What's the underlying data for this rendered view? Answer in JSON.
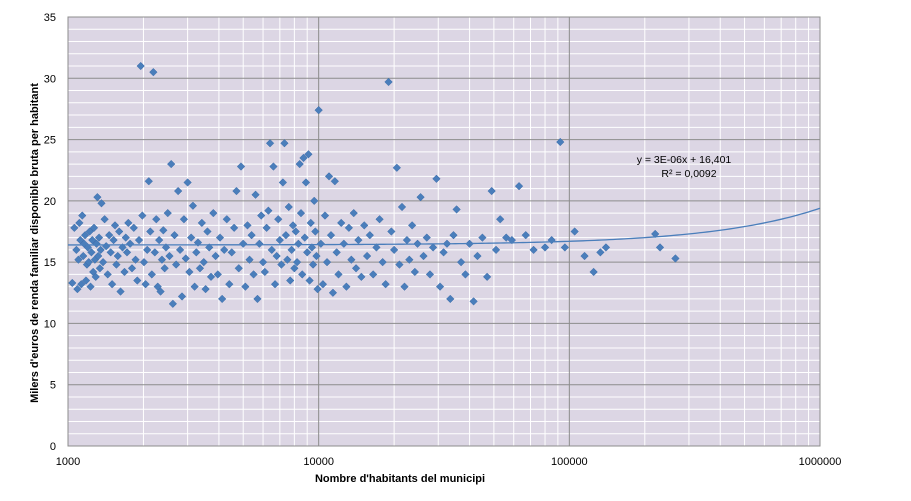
{
  "chart_data": {
    "type": "scatter",
    "xlabel": "Nombre d'habitants del municipi",
    "ylabel": "Milers d'euros de renda familiar disponible bruta per habitant",
    "x_scale": "log",
    "xlim": [
      1000,
      1000000
    ],
    "ylim": [
      0,
      35
    ],
    "x_ticks": [
      "1000",
      "10000",
      "100000",
      "1000000"
    ],
    "y_ticks": [
      "0",
      "5",
      "10",
      "15",
      "20",
      "25",
      "30",
      "35"
    ],
    "grid": true,
    "legend": "none",
    "colors": {
      "plot_background": "#dcd6e4",
      "marker": "#4a7ebb",
      "trendline": "#4a7ebb",
      "major_grid": "#8c8c8c",
      "minor_grid": "#ffffff"
    },
    "trendline": {
      "type": "linear",
      "equation": "y = 3E-06x + 16,401",
      "r_squared": "R² = 0,0092",
      "slope": 3e-06,
      "intercept": 16.401
    },
    "points": [
      [
        1040,
        13.3
      ],
      [
        1060,
        17.8
      ],
      [
        1080,
        16.0
      ],
      [
        1090,
        12.8
      ],
      [
        1100,
        15.2
      ],
      [
        1110,
        18.2
      ],
      [
        1120,
        16.8
      ],
      [
        1130,
        13.2
      ],
      [
        1140,
        18.8
      ],
      [
        1150,
        15.5
      ],
      [
        1160,
        16.5
      ],
      [
        1170,
        17.2
      ],
      [
        1180,
        13.5
      ],
      [
        1190,
        14.8
      ],
      [
        1200,
        16.2
      ],
      [
        1210,
        15.0
      ],
      [
        1220,
        17.5
      ],
      [
        1230,
        13.0
      ],
      [
        1240,
        15.8
      ],
      [
        1250,
        16.8
      ],
      [
        1260,
        14.2
      ],
      [
        1270,
        17.8
      ],
      [
        1280,
        15.2
      ],
      [
        1290,
        13.8
      ],
      [
        1300,
        16.5
      ],
      [
        1310,
        20.3
      ],
      [
        1320,
        15.5
      ],
      [
        1330,
        17.0
      ],
      [
        1340,
        14.5
      ],
      [
        1350,
        16.0
      ],
      [
        1360,
        19.8
      ],
      [
        1380,
        15.0
      ],
      [
        1400,
        18.5
      ],
      [
        1420,
        16.3
      ],
      [
        1440,
        14.0
      ],
      [
        1460,
        17.2
      ],
      [
        1480,
        15.8
      ],
      [
        1500,
        13.2
      ],
      [
        1520,
        16.8
      ],
      [
        1540,
        18.0
      ],
      [
        1560,
        14.8
      ],
      [
        1580,
        15.5
      ],
      [
        1600,
        17.5
      ],
      [
        1620,
        12.6
      ],
      [
        1650,
        16.2
      ],
      [
        1680,
        14.2
      ],
      [
        1700,
        17.0
      ],
      [
        1720,
        15.8
      ],
      [
        1740,
        18.2
      ],
      [
        1770,
        16.5
      ],
      [
        1800,
        14.5
      ],
      [
        1830,
        17.8
      ],
      [
        1860,
        15.2
      ],
      [
        1890,
        13.5
      ],
      [
        1920,
        16.8
      ],
      [
        1950,
        31.0
      ],
      [
        1980,
        18.8
      ],
      [
        2010,
        15.0
      ],
      [
        2040,
        13.2
      ],
      [
        2070,
        16.0
      ],
      [
        2100,
        21.6
      ],
      [
        2130,
        17.5
      ],
      [
        2160,
        14.0
      ],
      [
        2190,
        30.5
      ],
      [
        2220,
        15.8
      ],
      [
        2250,
        18.5
      ],
      [
        2280,
        13.0
      ],
      [
        2310,
        16.8
      ],
      [
        2340,
        12.6
      ],
      [
        2370,
        15.2
      ],
      [
        2400,
        17.6
      ],
      [
        2430,
        14.5
      ],
      [
        2460,
        16.2
      ],
      [
        2500,
        19.0
      ],
      [
        2540,
        15.5
      ],
      [
        2580,
        23.0
      ],
      [
        2620,
        11.6
      ],
      [
        2660,
        17.2
      ],
      [
        2700,
        14.8
      ],
      [
        2750,
        20.8
      ],
      [
        2800,
        16.0
      ],
      [
        2850,
        12.2
      ],
      [
        2900,
        18.5
      ],
      [
        2950,
        15.3
      ],
      [
        3000,
        21.5
      ],
      [
        3050,
        14.2
      ],
      [
        3100,
        17.0
      ],
      [
        3150,
        19.6
      ],
      [
        3200,
        13.0
      ],
      [
        3250,
        15.8
      ],
      [
        3300,
        16.6
      ],
      [
        3360,
        14.5
      ],
      [
        3420,
        18.2
      ],
      [
        3480,
        15.0
      ],
      [
        3540,
        12.8
      ],
      [
        3600,
        17.5
      ],
      [
        3660,
        16.2
      ],
      [
        3720,
        13.8
      ],
      [
        3800,
        19.0
      ],
      [
        3880,
        15.5
      ],
      [
        3960,
        14.0
      ],
      [
        4040,
        17.0
      ],
      [
        4120,
        12.0
      ],
      [
        4200,
        16.0
      ],
      [
        4300,
        18.5
      ],
      [
        4400,
        13.2
      ],
      [
        4500,
        15.8
      ],
      [
        4600,
        17.8
      ],
      [
        4700,
        20.8
      ],
      [
        4800,
        14.5
      ],
      [
        4900,
        22.8
      ],
      [
        5000,
        16.5
      ],
      [
        5100,
        13.0
      ],
      [
        5200,
        18.0
      ],
      [
        5300,
        15.2
      ],
      [
        5400,
        17.2
      ],
      [
        5500,
        14.0
      ],
      [
        5600,
        20.5
      ],
      [
        5700,
        12.0
      ],
      [
        5800,
        16.5
      ],
      [
        5900,
        18.8
      ],
      [
        6000,
        15.0
      ],
      [
        6100,
        14.2
      ],
      [
        6200,
        17.8
      ],
      [
        6300,
        19.2
      ],
      [
        6400,
        24.7
      ],
      [
        6500,
        16.0
      ],
      [
        6600,
        22.8
      ],
      [
        6700,
        13.2
      ],
      [
        6800,
        15.5
      ],
      [
        6900,
        18.5
      ],
      [
        7000,
        16.8
      ],
      [
        7100,
        14.8
      ],
      [
        7200,
        21.5
      ],
      [
        7300,
        24.7
      ],
      [
        7400,
        17.2
      ],
      [
        7500,
        15.2
      ],
      [
        7600,
        19.5
      ],
      [
        7700,
        13.5
      ],
      [
        7800,
        16.0
      ],
      [
        7900,
        18.0
      ],
      [
        8000,
        14.5
      ],
      [
        8100,
        17.5
      ],
      [
        8200,
        15.0
      ],
      [
        8300,
        16.5
      ],
      [
        8400,
        23.0
      ],
      [
        8500,
        19.0
      ],
      [
        8600,
        14.0
      ],
      [
        8700,
        23.5
      ],
      [
        8800,
        17.0
      ],
      [
        8900,
        21.5
      ],
      [
        9000,
        15.8
      ],
      [
        9100,
        23.8
      ],
      [
        9200,
        13.5
      ],
      [
        9300,
        18.2
      ],
      [
        9400,
        16.2
      ],
      [
        9500,
        14.8
      ],
      [
        9600,
        20.0
      ],
      [
        9700,
        17.5
      ],
      [
        9800,
        15.5
      ],
      [
        9900,
        12.8
      ],
      [
        10000,
        27.4
      ],
      [
        10200,
        16.5
      ],
      [
        10400,
        13.2
      ],
      [
        10600,
        18.8
      ],
      [
        10800,
        15.0
      ],
      [
        11000,
        22.0
      ],
      [
        11200,
        17.2
      ],
      [
        11400,
        12.5
      ],
      [
        11600,
        21.6
      ],
      [
        11800,
        15.8
      ],
      [
        12000,
        14.0
      ],
      [
        12300,
        18.2
      ],
      [
        12600,
        16.5
      ],
      [
        12900,
        13.0
      ],
      [
        13200,
        17.8
      ],
      [
        13500,
        15.2
      ],
      [
        13800,
        19.0
      ],
      [
        14100,
        14.5
      ],
      [
        14400,
        16.8
      ],
      [
        14800,
        13.8
      ],
      [
        15200,
        18.0
      ],
      [
        15600,
        15.5
      ],
      [
        16000,
        17.2
      ],
      [
        16500,
        14.0
      ],
      [
        17000,
        16.2
      ],
      [
        17500,
        18.5
      ],
      [
        18000,
        15.0
      ],
      [
        18500,
        13.2
      ],
      [
        19000,
        29.7
      ],
      [
        19500,
        17.5
      ],
      [
        20000,
        16.0
      ],
      [
        20500,
        22.7
      ],
      [
        21000,
        14.8
      ],
      [
        21500,
        19.5
      ],
      [
        22000,
        13.0
      ],
      [
        22500,
        16.8
      ],
      [
        23000,
        15.2
      ],
      [
        23600,
        18.0
      ],
      [
        24200,
        14.2
      ],
      [
        24800,
        16.5
      ],
      [
        25500,
        20.3
      ],
      [
        26200,
        15.5
      ],
      [
        27000,
        17.0
      ],
      [
        27800,
        14.0
      ],
      [
        28600,
        16.2
      ],
      [
        29500,
        21.8
      ],
      [
        30500,
        13.0
      ],
      [
        31500,
        15.8
      ],
      [
        32500,
        16.5
      ],
      [
        33500,
        12.0
      ],
      [
        34500,
        17.2
      ],
      [
        35500,
        19.3
      ],
      [
        37000,
        15.0
      ],
      [
        38500,
        14.0
      ],
      [
        40000,
        16.5
      ],
      [
        41500,
        11.8
      ],
      [
        43000,
        15.5
      ],
      [
        45000,
        17.0
      ],
      [
        47000,
        13.8
      ],
      [
        49000,
        20.8
      ],
      [
        51000,
        16.0
      ],
      [
        53000,
        18.5
      ],
      [
        56000,
        17.0
      ],
      [
        59000,
        16.8
      ],
      [
        63000,
        21.2
      ],
      [
        67000,
        17.2
      ],
      [
        72000,
        16.0
      ],
      [
        80000,
        16.2
      ],
      [
        85000,
        16.8
      ],
      [
        92000,
        24.8
      ],
      [
        96000,
        16.2
      ],
      [
        105000,
        17.5
      ],
      [
        115000,
        15.5
      ],
      [
        125000,
        14.2
      ],
      [
        133000,
        15.8
      ],
      [
        140000,
        16.2
      ],
      [
        220000,
        17.3
      ],
      [
        230000,
        16.2
      ],
      [
        265000,
        15.3
      ]
    ]
  }
}
